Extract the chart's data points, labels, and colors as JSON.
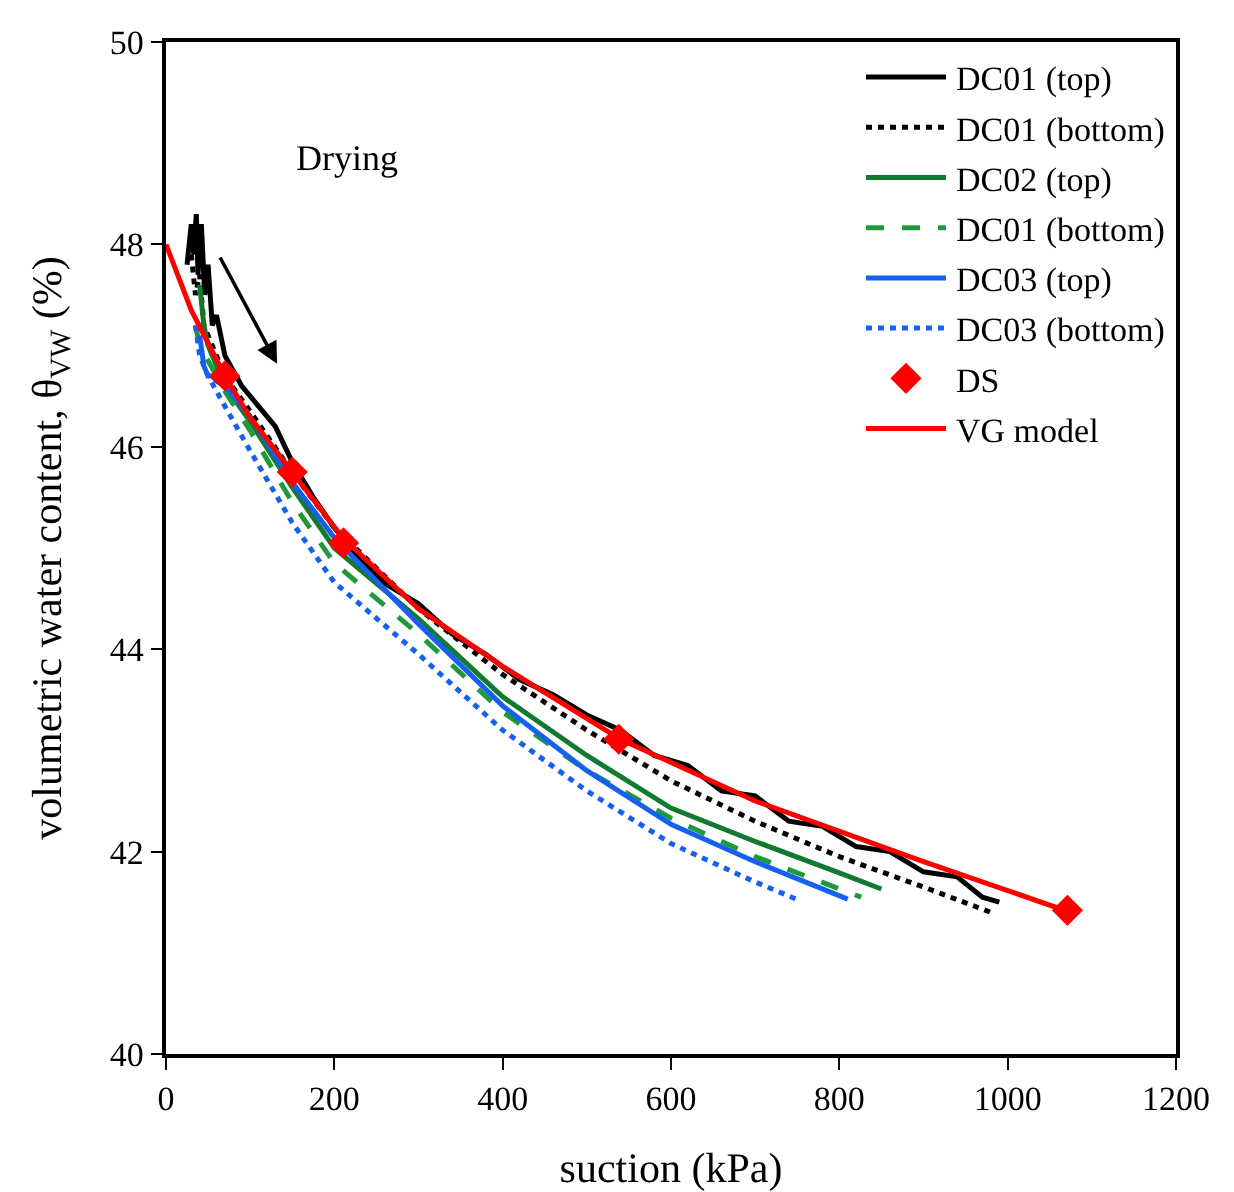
{
  "chart_data": {
    "type": "line",
    "xlabel": "suction (kPa)",
    "ylabel": "volumetric water content, θ$_{VW}$ (%)",
    "xlim": [
      0,
      1200
    ],
    "xticks": [
      0,
      200,
      400,
      600,
      800,
      1000,
      1200
    ],
    "ylim": [
      40,
      50
    ],
    "yticks": [
      40,
      42,
      44,
      46,
      48,
      50
    ],
    "grid": false,
    "legend": "top right",
    "annotations": [
      "Drying"
    ],
    "series": [
      {
        "name": "DC01 (top)",
        "color": "#000000",
        "line_style": "solid",
        "x": [
          25,
          30,
          33,
          36,
          38,
          42,
          46,
          50,
          55,
          60,
          70,
          80,
          90,
          100,
          115,
          130,
          150,
          175,
          200,
          230,
          260,
          300,
          340,
          380,
          420,
          460,
          500,
          540,
          580,
          620,
          660,
          700,
          740,
          780,
          820,
          860,
          900,
          940,
          970,
          990
        ],
        "values": [
          47.8,
          48.2,
          47.9,
          48.3,
          47.7,
          48.2,
          47.5,
          47.8,
          47.2,
          47.3,
          46.9,
          46.75,
          46.6,
          46.5,
          46.35,
          46.2,
          45.85,
          45.5,
          45.2,
          44.9,
          44.65,
          44.45,
          44.15,
          43.95,
          43.7,
          43.55,
          43.35,
          43.2,
          42.95,
          42.85,
          42.6,
          42.55,
          42.3,
          42.25,
          42.05,
          42.0,
          41.8,
          41.75,
          41.55,
          41.5
        ]
      },
      {
        "name": "DC01 (bottom)",
        "color": "#000000",
        "line_style": "dotted",
        "x": [
          30,
          35,
          40,
          45,
          55,
          70,
          100,
          150,
          200,
          300,
          400,
          500,
          600,
          700,
          800,
          900,
          980
        ],
        "values": [
          47.9,
          47.5,
          47.7,
          47.2,
          47.0,
          46.7,
          46.35,
          45.75,
          45.2,
          44.4,
          43.75,
          43.2,
          42.7,
          42.3,
          41.95,
          41.65,
          41.4
        ]
      },
      {
        "name": "DC02 (top)",
        "color": "#117a2e",
        "line_style": "solid",
        "x": [
          40,
          45,
          50,
          60,
          70,
          100,
          150,
          200,
          300,
          400,
          500,
          600,
          700,
          800,
          850
        ],
        "values": [
          47.6,
          47.2,
          47.0,
          46.8,
          46.6,
          46.25,
          45.6,
          45.0,
          44.3,
          43.53,
          42.95,
          42.43,
          42.1,
          41.79,
          41.63
        ]
      },
      {
        "name": "DC01 (bottom)",
        "color": "#1f9a3a",
        "line_style": "dashed",
        "x": [
          35,
          40,
          50,
          60,
          70,
          100,
          150,
          200,
          300,
          400,
          500,
          600,
          700,
          826
        ],
        "values": [
          47.2,
          47.0,
          46.85,
          46.7,
          46.55,
          46.16,
          45.45,
          44.85,
          44.15,
          43.38,
          42.8,
          42.33,
          41.95,
          41.55
        ]
      },
      {
        "name": "DC03 (top)",
        "color": "#1560ee",
        "line_style": "solid",
        "x": [
          40,
          45,
          50,
          55,
          60,
          70,
          100,
          150,
          200,
          300,
          400,
          500,
          600,
          700,
          810
        ],
        "values": [
          47.1,
          46.8,
          46.7,
          46.7,
          46.65,
          46.6,
          46.3,
          45.65,
          45.1,
          44.25,
          43.44,
          42.8,
          42.27,
          41.9,
          41.53
        ]
      },
      {
        "name": "DC03 (bottom)",
        "color": "#1560ee",
        "line_style": "dotted",
        "x": [
          35,
          40,
          50,
          60,
          70,
          100,
          150,
          200,
          300,
          400,
          500,
          600,
          700,
          749
        ],
        "values": [
          47.2,
          46.9,
          46.7,
          46.55,
          46.4,
          45.96,
          45.25,
          44.66,
          43.95,
          43.2,
          42.6,
          42.08,
          41.7,
          41.53
        ]
      },
      {
        "name": "DS",
        "type": "scatter",
        "marker": "diamond",
        "color": "#ff0000",
        "x": [
          70,
          150,
          211,
          538,
          1071
        ],
        "values": [
          46.7,
          45.75,
          45.05,
          43.11,
          41.42
        ]
      },
      {
        "name": "VG model",
        "color": "#ff0000",
        "line_style": "solid",
        "x": [
          0,
          30,
          70,
          100,
          150,
          210,
          300,
          400,
          540,
          700,
          900,
          1075
        ],
        "values": [
          48,
          47.35,
          46.7,
          46.29,
          45.75,
          45.1,
          44.4,
          43.83,
          43.11,
          42.5,
          41.9,
          41.4
        ]
      }
    ]
  }
}
